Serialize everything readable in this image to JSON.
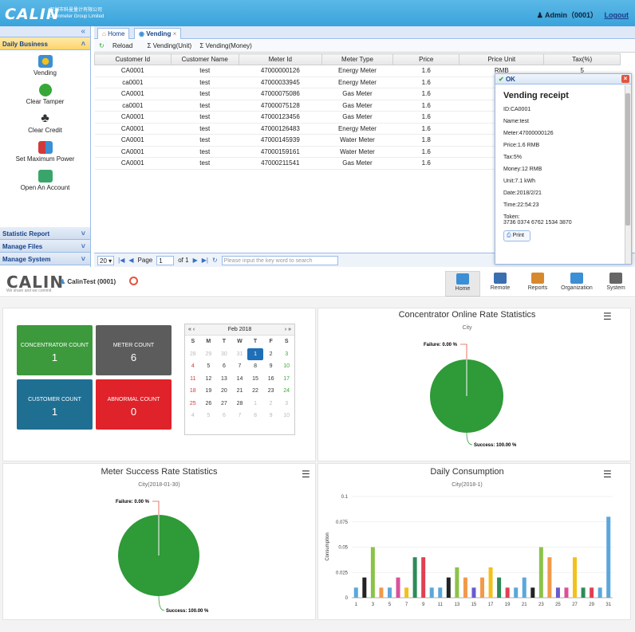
{
  "app": {
    "logo": "CALIN",
    "company_line1": "深圳市科曼量计有限公司",
    "company_line2": "Calinmeter Group Limited",
    "user": "Admin（0001）",
    "logout": "Logout"
  },
  "leftpanel": {
    "collapse": "«",
    "daily_business": "Daily Business",
    "items": [
      {
        "label": "Vending",
        "color": "#3b8fd4"
      },
      {
        "label": "Clear Tamper",
        "color": "#37a838"
      },
      {
        "label": "Clear Credit",
        "color": "#333333"
      },
      {
        "label": "Set Maximum Power",
        "color": "#d13a3a"
      },
      {
        "label": "Open An Account",
        "color": "#3aa56a"
      }
    ],
    "statistic_report": "Statistic Report",
    "manage_files": "Manage Files",
    "manage_system": "Manage System"
  },
  "tabs": {
    "home": "Home",
    "vending": "Vending",
    "close": "×"
  },
  "toolbar": {
    "reload": "Reload",
    "vending_unit": "Σ Vending(Unit)",
    "vending_money": "Σ Vending(Money)"
  },
  "grid": {
    "headers": [
      "Customer Id",
      "Customer Name",
      "Meter Id",
      "Meter Type",
      "Price",
      "Price Unit",
      "Tax(%)"
    ],
    "rows": [
      [
        "CA0001",
        "test",
        "47000000126",
        "Energy Meter",
        "1.6",
        "RMB",
        "5"
      ],
      [
        "ca0001",
        "test",
        "47000033945",
        "Energy Meter",
        "1.6",
        "",
        ""
      ],
      [
        "CA0001",
        "test",
        "47000075086",
        "Gas Meter",
        "1.6",
        "",
        ""
      ],
      [
        "ca0001",
        "test",
        "47000075128",
        "Gas Meter",
        "1.6",
        "",
        ""
      ],
      [
        "CA0001",
        "test",
        "47000123456",
        "Gas Meter",
        "1.6",
        "",
        ""
      ],
      [
        "CA0001",
        "test",
        "47000126483",
        "Energy Meter",
        "1.6",
        "",
        ""
      ],
      [
        "CA0001",
        "test",
        "47000145939",
        "Water Meter",
        "1.8",
        "",
        ""
      ],
      [
        "CA0001",
        "test",
        "47000159161",
        "Water Meter",
        "1.6",
        "",
        ""
      ],
      [
        "CA0001",
        "test",
        "47000211541",
        "Gas Meter",
        "1.6",
        "",
        ""
      ]
    ]
  },
  "pager": {
    "page_size": "20",
    "page_label": "Page",
    "page": "1",
    "of": "of 1",
    "search_placeholder": "Please input the key word to search"
  },
  "receipt": {
    "ok": "OK",
    "title": "Vending receipt",
    "lines": [
      "ID:CA0001",
      "Name:test",
      "Meter:47000000126",
      "Price:1.6 RMB",
      "Tax:5%",
      "Money:12 RMB",
      "Unit:7.1 kWh",
      "Date:2018/2/21",
      "Time:22:54:23",
      "Token:"
    ],
    "token": "3736 0374 6762 1534 3870",
    "print": "Print"
  },
  "dashboard": {
    "logo": "CALIN",
    "slogan": "We share and we commit",
    "user": "CalinTest (0001)",
    "nav": [
      {
        "label": "Home",
        "color": "#3b8fd4"
      },
      {
        "label": "Remote",
        "color": "#3a6fb0"
      },
      {
        "label": "Reports",
        "color": "#d9892d"
      },
      {
        "label": "Organization",
        "color": "#3b8fd4"
      },
      {
        "label": "System",
        "color": "#666666"
      }
    ],
    "tiles": [
      {
        "label": "CONCENTRATOR COUNT",
        "value": "1",
        "color": "#3c9a3c"
      },
      {
        "label": "METER COUNT",
        "value": "6",
        "color": "#5c5c5c"
      },
      {
        "label": "CUSTOMER COUNT",
        "value": "1",
        "color": "#1f6f93"
      },
      {
        "label": "ABNORMAL COUNT",
        "value": "0",
        "color": "#e0222a"
      }
    ],
    "calendar": {
      "title": "Feb 2018",
      "days": [
        "S",
        "M",
        "T",
        "W",
        "T",
        "F",
        "S"
      ],
      "weeks": [
        [
          "28",
          "29",
          "30",
          "31",
          "1",
          "2",
          "3"
        ],
        [
          "4",
          "5",
          "6",
          "7",
          "8",
          "9",
          "10"
        ],
        [
          "11",
          "12",
          "13",
          "14",
          "15",
          "16",
          "17"
        ],
        [
          "18",
          "19",
          "20",
          "21",
          "22",
          "23",
          "24"
        ],
        [
          "25",
          "26",
          "27",
          "28",
          "1",
          "2",
          "3"
        ],
        [
          "4",
          "5",
          "6",
          "7",
          "8",
          "9",
          "10"
        ]
      ]
    },
    "concentrator": {
      "title": "Concentrator Online Rate Statistics",
      "subtitle": "City",
      "failure": "Failure: 0.00 %",
      "success": "Success: 100.00 %"
    },
    "meter": {
      "title": "Meter Success Rate Statistics",
      "subtitle": "City(2018-01-30)",
      "failure": "Failure: 0.00 %",
      "success": "Success: 100.00 %"
    },
    "consumption": {
      "title": "Daily Consumption",
      "subtitle": "City(2018-1)",
      "ylabel": "Consumption"
    }
  },
  "chart_data": [
    {
      "type": "pie",
      "title": "Concentrator Online Rate Statistics",
      "subtitle": "City",
      "labels": [
        "Failure",
        "Success"
      ],
      "values": [
        0.0,
        100.0
      ],
      "colors": [
        "#e0553f",
        "#2f9a38"
      ]
    },
    {
      "type": "pie",
      "title": "Meter Success Rate Statistics",
      "subtitle": "City(2018-01-30)",
      "labels": [
        "Failure",
        "Success"
      ],
      "values": [
        0.0,
        100.0
      ],
      "colors": [
        "#e0553f",
        "#2f9a38"
      ]
    },
    {
      "type": "bar",
      "title": "Daily Consumption",
      "subtitle": "City(2018-1)",
      "ylabel": "Consumption",
      "ylim": [
        0,
        0.1
      ],
      "yticks": [
        "0",
        "0.025",
        "0.05",
        "0.075",
        "0.1"
      ],
      "xticks": [
        "1",
        "3",
        "5",
        "7",
        "9",
        "11",
        "13",
        "15",
        "17",
        "19",
        "21",
        "23",
        "25",
        "27",
        "29",
        "31"
      ],
      "categories": [
        "1",
        "2",
        "3",
        "4",
        "5",
        "6",
        "7",
        "8",
        "9",
        "10",
        "11",
        "12",
        "13",
        "14",
        "15",
        "16",
        "17",
        "18",
        "19",
        "20",
        "21",
        "22",
        "23",
        "24",
        "25",
        "26",
        "27",
        "28",
        "29",
        "30",
        "31"
      ],
      "values": [
        0.01,
        0.02,
        0.05,
        0.01,
        0.01,
        0.02,
        0.01,
        0.04,
        0.04,
        0.01,
        0.01,
        0.02,
        0.03,
        0.02,
        0.01,
        0.02,
        0.03,
        0.02,
        0.01,
        0.01,
        0.02,
        0.01,
        0.05,
        0.04,
        0.01,
        0.01,
        0.04,
        0.01,
        0.01,
        0.01,
        0.08
      ],
      "colors": [
        "#5ba7db",
        "#222222",
        "#8bc34a",
        "#f2994a",
        "#5ba7db",
        "#d9529a",
        "#f2c11a",
        "#2e8b57",
        "#e04052",
        "#5ba7db",
        "#5ba7db",
        "#222222",
        "#8bc34a",
        "#f2994a",
        "#6a5acd",
        "#f2994a",
        "#f2c11a",
        "#2e8b57",
        "#e04052",
        "#5ba7db",
        "#5ba7db",
        "#222222",
        "#8bc34a",
        "#f2994a",
        "#6a5acd",
        "#d9529a",
        "#f2c11a",
        "#2e8b57",
        "#e04052",
        "#5ba7db",
        "#5ba7db"
      ]
    }
  ]
}
